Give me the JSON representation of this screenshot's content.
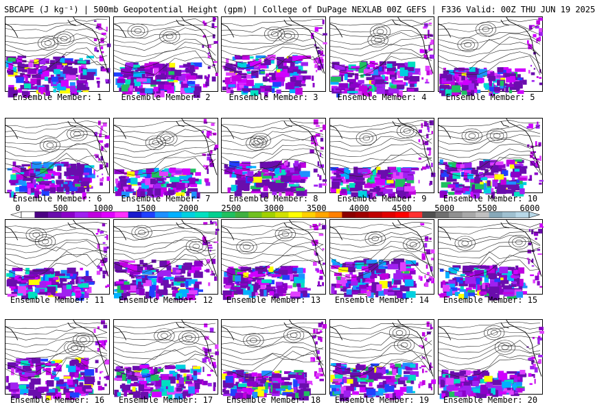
{
  "header": {
    "title": "SBCAPE (J kg⁻¹) | 500mb Geopotential Height (gpm) | College of DuPage NEXLAB 00Z GEFS | F336 Valid: 00Z THU JUN 19 2025"
  },
  "panels": [
    {
      "label": "Ensemble Member: 1"
    },
    {
      "label": "Ensemble Member: 2"
    },
    {
      "label": "Ensemble Member: 3"
    },
    {
      "label": "Ensemble Member: 4"
    },
    {
      "label": "Ensemble Member: 5"
    },
    {
      "label": "Ensemble Member: 6"
    },
    {
      "label": "Ensemble Member: 7"
    },
    {
      "label": "Ensemble Member: 8"
    },
    {
      "label": "Ensemble Member: 9"
    },
    {
      "label": "Ensemble Member: 10"
    },
    {
      "label": "Ensemble Member: 11"
    },
    {
      "label": "Ensemble Member: 12"
    },
    {
      "label": "Ensemble Member: 13"
    },
    {
      "label": "Ensemble Member: 14"
    },
    {
      "label": "Ensemble Member: 15"
    },
    {
      "label": "Ensemble Member: 16"
    },
    {
      "label": "Ensemble Member: 17"
    },
    {
      "label": "Ensemble Member: 18"
    },
    {
      "label": "Ensemble Member: 19"
    },
    {
      "label": "Ensemble Member: 20"
    }
  ],
  "colorbar": {
    "labels": [
      "0",
      "500",
      "1000",
      "1500",
      "2000",
      "2500",
      "3000",
      "3500",
      "4000",
      "4500",
      "5000",
      "5500",
      "6000"
    ],
    "colors": [
      "#ffffff",
      "#4b0082",
      "#6a0dad",
      "#8b00c8",
      "#a020f0",
      "#c000e0",
      "#e000ff",
      "#ff30ff",
      "#1a1acd",
      "#2040ff",
      "#1e90ff",
      "#00b0ff",
      "#00d0e0",
      "#00e0c0",
      "#00d090",
      "#20c060",
      "#40b040",
      "#70c020",
      "#a0d000",
      "#d0e000",
      "#ffff00",
      "#ffd000",
      "#ffa500",
      "#ff8000",
      "#8b0000",
      "#a00000",
      "#c00000",
      "#e00000",
      "#ff0000",
      "#ff3030",
      "#505050",
      "#707070",
      "#909090",
      "#a8a8a8",
      "#c0c0c0",
      "#87a8b8",
      "#9fc0d0",
      "#b8d8e8"
    ]
  }
}
